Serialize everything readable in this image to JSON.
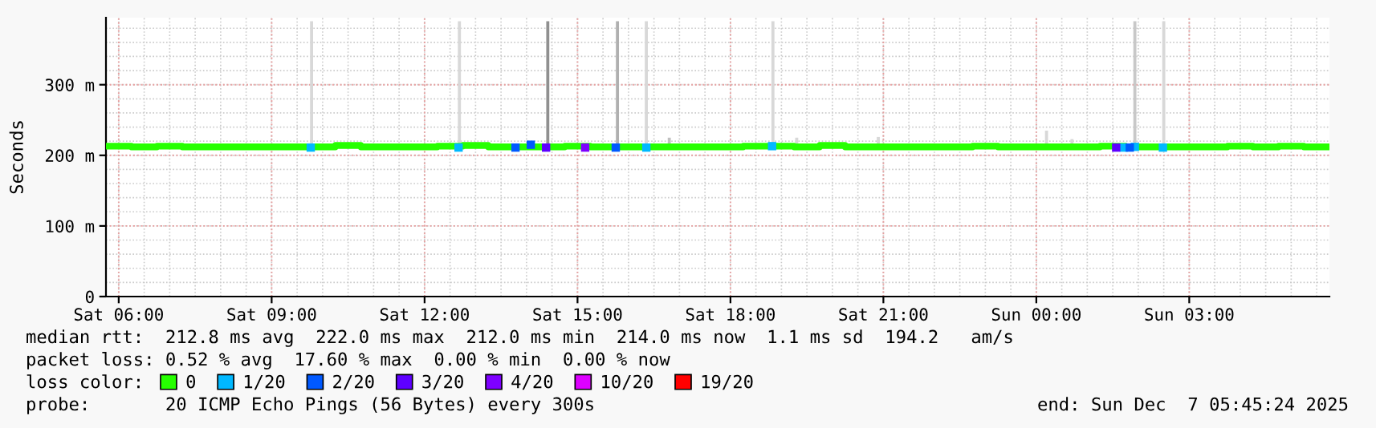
{
  "chart_data": {
    "type": "step",
    "ylabel": "Seconds",
    "xlim": [
      "2025-12-06T05:45",
      "2025-12-07T05:45"
    ],
    "ylim": [
      0,
      395
    ],
    "xticks": [
      {
        "value": "2025-12-06T06:00",
        "label": "Sat 06:00"
      },
      {
        "value": "2025-12-06T09:00",
        "label": "Sat 09:00"
      },
      {
        "value": "2025-12-06T12:00",
        "label": "Sat 12:00"
      },
      {
        "value": "2025-12-06T15:00",
        "label": "Sat 15:00"
      },
      {
        "value": "2025-12-06T18:00",
        "label": "Sat 18:00"
      },
      {
        "value": "2025-12-06T21:00",
        "label": "Sat 21:00"
      },
      {
        "value": "2025-12-07T00:00",
        "label": "Sun 00:00"
      },
      {
        "value": "2025-12-07T03:00",
        "label": "Sun 03:00"
      }
    ],
    "yticks": [
      0,
      {
        "value": 100,
        "label": "100 m"
      },
      {
        "value": 200,
        "label": "200 m"
      },
      {
        "value": 300,
        "label": "300 m"
      }
    ],
    "grid": true,
    "legend": "bottom",
    "legend_title": "loss color:",
    "series": [
      {
        "type": "bar",
        "color": "#d0d0d0",
        "x": [
          "2025-12-06T09:47",
          "2025-12-06T12:41",
          "2025-12-06T14:25",
          "2025-12-06T15:47",
          "2025-12-06T16:21",
          "2025-12-06T16:48",
          "2025-12-06T18:50",
          "2025-12-06T19:18",
          "2025-12-06T20:54",
          "2025-12-07T00:12",
          "2025-12-07T00:42",
          "2025-12-07T01:56",
          "2025-12-07T02:30"
        ],
        "base": [
          213,
          213,
          213,
          213,
          213,
          213,
          213,
          213,
          213,
          213,
          213,
          213,
          213
        ],
        "values": [
          177,
          177,
          177,
          177,
          177,
          12,
          177,
          12,
          13,
          22,
          10,
          177,
          177
        ],
        "colors": [
          "#d8d8d8",
          "#d8d8d8",
          "#909090",
          "#b0b0b0",
          "#d8d8d8",
          "#c0c0c0",
          "#d8d8d8",
          "#d8d8d8",
          "#d8d8d8",
          "#d8d8d8",
          "#d8d8d8",
          "#c8c8c8",
          "#d8d8d8"
        ]
      },
      {
        "name": "0",
        "color": "#26ff00",
        "marker": "none",
        "x": [
          "2025-12-06T05:45",
          "2025-12-06T06:15",
          "2025-12-06T06:45",
          "2025-12-06T07:15",
          "2025-12-06T07:45",
          "2025-12-06T08:15",
          "2025-12-06T08:45",
          "2025-12-06T09:15",
          "2025-12-06T09:45",
          "2025-12-06T10:15",
          "2025-12-06T10:45",
          "2025-12-06T11:15",
          "2025-12-06T11:45",
          "2025-12-06T12:15",
          "2025-12-06T12:45",
          "2025-12-06T13:15",
          "2025-12-06T13:45",
          "2025-12-06T14:15",
          "2025-12-06T14:45",
          "2025-12-06T15:15",
          "2025-12-06T15:45",
          "2025-12-06T16:15",
          "2025-12-06T16:45",
          "2025-12-06T17:15",
          "2025-12-06T17:45",
          "2025-12-06T18:15",
          "2025-12-06T18:45",
          "2025-12-06T19:15",
          "2025-12-06T19:45",
          "2025-12-06T20:15",
          "2025-12-06T20:45",
          "2025-12-06T21:15",
          "2025-12-06T21:45",
          "2025-12-06T22:15",
          "2025-12-06T22:45",
          "2025-12-06T23:15",
          "2025-12-06T23:45",
          "2025-12-07T00:15",
          "2025-12-07T00:45",
          "2025-12-07T01:15",
          "2025-12-07T01:45",
          "2025-12-07T02:15",
          "2025-12-07T02:45",
          "2025-12-07T03:15",
          "2025-12-07T03:45",
          "2025-12-07T04:15",
          "2025-12-07T04:45",
          "2025-12-07T05:15",
          "2025-12-07T05:45"
        ],
        "values": [
          213,
          212,
          213,
          212,
          212,
          212,
          212,
          212,
          212,
          214,
          212,
          212,
          212,
          213,
          214,
          212,
          212,
          212,
          213,
          212,
          212,
          212,
          212,
          212,
          212,
          213,
          213,
          212,
          214,
          212,
          212,
          212,
          212,
          212,
          213,
          212,
          212,
          212,
          212,
          213,
          212,
          212,
          212,
          212,
          213,
          212,
          213,
          212,
          212
        ]
      },
      {
        "name": "1/20",
        "type": "scatter",
        "color": "#00b8ff",
        "marker": "square",
        "x": [
          "2025-12-06T09:46",
          "2025-12-06T12:40",
          "2025-12-06T16:21",
          "2025-12-06T18:49",
          "2025-12-07T01:43",
          "2025-12-07T01:56",
          "2025-12-07T02:29"
        ],
        "values": [
          211,
          211,
          211,
          213,
          211,
          212,
          211
        ]
      },
      {
        "name": "2/20",
        "type": "scatter",
        "color": "#0059ff",
        "marker": "square",
        "x": [
          "2025-12-06T13:47",
          "2025-12-06T14:05",
          "2025-12-06T15:45",
          "2025-12-07T01:50"
        ],
        "values": [
          211,
          215,
          211,
          211
        ]
      },
      {
        "name": "3/20",
        "type": "scatter",
        "color": "#5e00ff",
        "marker": "square",
        "x": [
          "2025-12-06T14:23",
          "2025-12-07T01:34"
        ],
        "values": [
          211,
          211
        ]
      },
      {
        "name": "4/20",
        "type": "scatter",
        "color": "#7e00ff",
        "marker": "square",
        "x": [
          "2025-12-06T15:09"
        ],
        "values": [
          211
        ]
      },
      {
        "name": "10/20",
        "type": "scatter",
        "color": "#dd00ff",
        "marker": "square"
      },
      {
        "name": "19/20",
        "type": "scatter",
        "color": "#ff0000",
        "marker": "square"
      }
    ],
    "annotations": [
      "median rtt:  212.8 ms avg  222.0 ms max  212.0 ms min  214.0 ms now  1.1 ms sd  194.2   am/s",
      "packet loss: 0.52 % avg  17.60 % max  0.00 % min  0.00 % now",
      "probe:       20 ICMP Echo Pings (56 Bytes) every 300s",
      "end: Sun Dec  7 05:45:24 2025"
    ]
  }
}
